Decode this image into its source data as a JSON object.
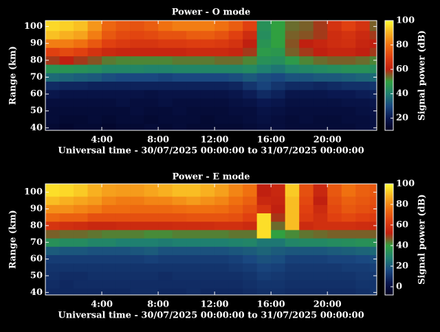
{
  "chart_data": [
    {
      "type": "heatmap",
      "title": "Power - O mode",
      "xlabel": "Universal time - 30/07/2025 00:00:00 to 31/07/2025 00:00:00",
      "ylabel": "Range (km)",
      "colorbar_label": "Signal power (dB)",
      "x": [
        0,
        1,
        2,
        3,
        4,
        5,
        6,
        7,
        8,
        9,
        10,
        11,
        12,
        13,
        14,
        15,
        16,
        17,
        18,
        19,
        20,
        21,
        22,
        23
      ],
      "y": [
        40,
        45,
        50,
        55,
        60,
        65,
        70,
        75,
        80,
        85,
        90,
        95,
        100
      ],
      "z": [
        [
          14,
          13,
          14,
          14,
          13,
          14,
          14,
          15,
          14,
          15,
          14,
          14,
          14,
          14,
          15,
          16,
          16,
          15,
          15,
          15,
          15,
          15,
          16,
          17
        ],
        [
          15,
          14,
          14,
          15,
          14,
          15,
          15,
          14,
          15,
          15,
          15,
          14,
          15,
          15,
          16,
          17,
          16,
          15,
          16,
          15,
          15,
          16,
          16,
          17
        ],
        [
          15,
          15,
          15,
          15,
          15,
          15,
          16,
          15,
          15,
          16,
          15,
          15,
          15,
          16,
          16,
          18,
          17,
          16,
          16,
          16,
          16,
          16,
          17,
          18
        ],
        [
          16,
          16,
          16,
          16,
          16,
          17,
          16,
          16,
          17,
          16,
          16,
          16,
          16,
          17,
          18,
          20,
          19,
          17,
          17,
          17,
          17,
          18,
          18,
          19
        ],
        [
          19,
          18,
          18,
          18,
          18,
          18,
          18,
          17,
          18,
          18,
          18,
          18,
          18,
          19,
          21,
          24,
          22,
          19,
          19,
          19,
          20,
          20,
          21,
          22
        ],
        [
          24,
          23,
          23,
          22,
          22,
          22,
          22,
          22,
          22,
          22,
          22,
          22,
          22,
          23,
          26,
          29,
          26,
          24,
          24,
          23,
          24,
          25,
          25,
          26
        ],
        [
          36,
          35,
          34,
          33,
          31,
          30,
          30,
          30,
          29,
          30,
          30,
          30,
          30,
          31,
          33,
          31,
          30,
          32,
          32,
          33,
          33,
          34,
          35,
          36
        ],
        [
          46,
          46,
          45,
          44,
          42,
          42,
          42,
          41,
          41,
          42,
          42,
          42,
          42,
          42,
          43,
          40,
          38,
          41,
          42,
          43,
          44,
          45,
          45,
          44
        ],
        [
          58,
          60,
          58,
          56,
          53,
          52,
          52,
          52,
          52,
          53,
          53,
          53,
          54,
          54,
          52,
          45,
          44,
          48,
          52,
          54,
          55,
          55,
          54,
          52
        ],
        [
          70,
          72,
          70,
          66,
          63,
          62,
          62,
          62,
          62,
          62,
          63,
          63,
          63,
          62,
          58,
          48,
          47,
          55,
          58,
          60,
          62,
          62,
          60,
          58
        ],
        [
          82,
          82,
          80,
          75,
          70,
          68,
          67,
          67,
          68,
          68,
          69,
          69,
          68,
          66,
          60,
          46,
          50,
          56,
          60,
          62,
          64,
          65,
          62,
          60
        ],
        [
          92,
          90,
          88,
          82,
          75,
          72,
          71,
          72,
          74,
          74,
          76,
          76,
          74,
          70,
          64,
          44,
          50,
          55,
          56,
          58,
          64,
          66,
          63,
          58
        ],
        [
          95,
          94,
          92,
          86,
          78,
          75,
          74,
          76,
          80,
          82,
          82,
          82,
          80,
          76,
          70,
          45,
          50,
          54,
          55,
          58,
          66,
          70,
          66,
          55
        ]
      ],
      "xlim": [
        0,
        23.5
      ],
      "ylim": [
        38.5,
        103.5
      ],
      "xticks": [
        {
          "value": 4,
          "label": "4:00"
        },
        {
          "value": 8,
          "label": "8:00"
        },
        {
          "value": 12,
          "label": "12:00"
        },
        {
          "value": 16,
          "label": "16:00"
        },
        {
          "value": 20,
          "label": "20:00"
        }
      ],
      "yticks": [
        40,
        50,
        60,
        70,
        80,
        90,
        100
      ],
      "clim": [
        10,
        100
      ],
      "cticks": [
        20,
        40,
        60,
        80,
        100
      ],
      "colormap": [
        "#000020",
        "#0a1850",
        "#1a4880",
        "#1f8070",
        "#30a040",
        "#c02010",
        "#e04010",
        "#f07010",
        "#f8b020",
        "#ffff30"
      ]
    },
    {
      "type": "heatmap",
      "title": "Power - E mode",
      "xlabel": "Universal time - 30/07/2025 00:00:00 to 31/07/2025 00:00:00",
      "ylabel": "Range (km)",
      "colorbar_label": "Signal power (dB)",
      "x": [
        0,
        1,
        2,
        3,
        4,
        5,
        6,
        7,
        8,
        9,
        10,
        11,
        12,
        13,
        14,
        15,
        16,
        17,
        18,
        19,
        20,
        21,
        22,
        23
      ],
      "y": [
        40,
        45,
        50,
        55,
        60,
        65,
        70,
        75,
        80,
        85,
        90,
        95,
        100
      ],
      "z": [
        [
          8,
          8,
          8,
          8,
          8,
          8,
          9,
          9,
          8,
          8,
          9,
          8,
          8,
          8,
          9,
          10,
          10,
          9,
          9,
          9,
          9,
          9,
          10,
          11
        ],
        [
          9,
          8,
          9,
          9,
          9,
          9,
          9,
          9,
          9,
          9,
          9,
          9,
          9,
          9,
          10,
          11,
          11,
          10,
          10,
          10,
          10,
          10,
          11,
          11
        ],
        [
          10,
          9,
          9,
          10,
          10,
          10,
          10,
          10,
          9,
          10,
          10,
          10,
          10,
          10,
          11,
          13,
          12,
          11,
          11,
          11,
          11,
          11,
          12,
          12
        ],
        [
          11,
          11,
          11,
          11,
          11,
          11,
          11,
          11,
          11,
          11,
          11,
          11,
          11,
          12,
          13,
          15,
          14,
          12,
          12,
          12,
          12,
          13,
          13,
          14
        ],
        [
          13,
          13,
          13,
          13,
          13,
          13,
          13,
          14,
          13,
          13,
          13,
          13,
          13,
          14,
          16,
          18,
          17,
          14,
          14,
          14,
          15,
          15,
          16,
          17
        ],
        [
          20,
          19,
          19,
          18,
          18,
          18,
          19,
          20,
          18,
          18,
          18,
          18,
          18,
          19,
          20,
          22,
          20,
          19,
          19,
          19,
          20,
          21,
          22,
          23
        ],
        [
          34,
          32,
          32,
          30,
          30,
          28,
          28,
          28,
          27,
          28,
          28,
          28,
          28,
          29,
          30,
          26,
          26,
          30,
          31,
          31,
          32,
          33,
          34,
          35
        ],
        [
          46,
          45,
          45,
          44,
          43,
          43,
          43,
          42,
          42,
          43,
          43,
          43,
          43,
          44,
          44,
          95,
          40,
          42,
          44,
          45,
          46,
          46,
          46,
          46
        ],
        [
          60,
          58,
          57,
          55,
          55,
          56,
          56,
          56,
          56,
          57,
          57,
          57,
          58,
          58,
          56,
          95,
          45,
          90,
          56,
          58,
          58,
          58,
          57,
          56
        ],
        [
          74,
          72,
          72,
          68,
          68,
          68,
          68,
          68,
          68,
          68,
          69,
          69,
          69,
          68,
          64,
          95,
          50,
          90,
          62,
          58,
          64,
          66,
          64,
          62
        ],
        [
          82,
          82,
          80,
          78,
          75,
          75,
          74,
          74,
          74,
          75,
          76,
          76,
          75,
          72,
          68,
          60,
          52,
          90,
          64,
          56,
          66,
          70,
          68,
          66
        ],
        [
          90,
          88,
          86,
          84,
          80,
          78,
          78,
          80,
          80,
          82,
          84,
          82,
          80,
          76,
          72,
          55,
          54,
          90,
          66,
          52,
          68,
          72,
          70,
          68
        ],
        [
          95,
          94,
          92,
          88,
          85,
          84,
          84,
          86,
          88,
          90,
          90,
          88,
          85,
          80,
          76,
          52,
          55,
          92,
          68,
          55,
          70,
          76,
          72,
          70
        ]
      ],
      "xlim": [
        0,
        23.5
      ],
      "ylim": [
        38.5,
        105
      ],
      "xticks": [
        {
          "value": 4,
          "label": "4:00"
        },
        {
          "value": 8,
          "label": "8:00"
        },
        {
          "value": 12,
          "label": "12:00"
        },
        {
          "value": 16,
          "label": "16:00"
        },
        {
          "value": 20,
          "label": "20:00"
        }
      ],
      "yticks": [
        40,
        50,
        60,
        70,
        80,
        90,
        100
      ],
      "clim": [
        -8,
        100
      ],
      "cticks": [
        0,
        20,
        40,
        60,
        80,
        100
      ],
      "colormap": [
        "#000020",
        "#0a1850",
        "#1a4880",
        "#1f8070",
        "#30a040",
        "#c02010",
        "#e04010",
        "#f07010",
        "#f8b020",
        "#ffff30"
      ]
    }
  ]
}
